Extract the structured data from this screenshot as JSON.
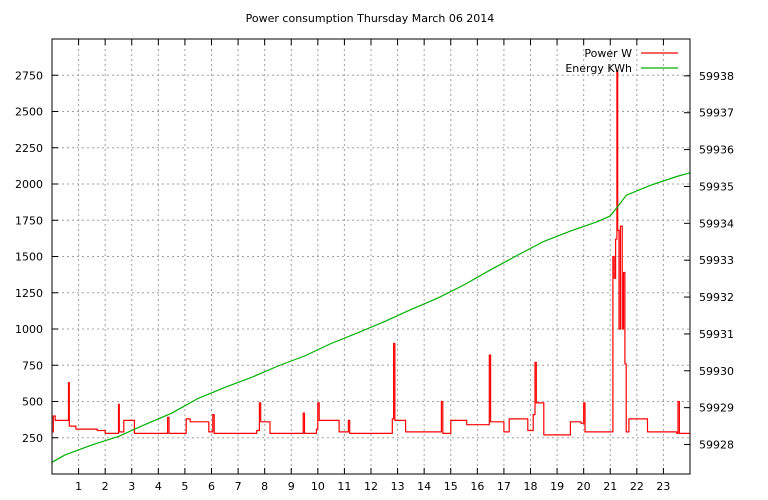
{
  "chart_data": {
    "type": "line",
    "title": "Power consumption Thursday March 06 2014",
    "xlabel": "",
    "ylabel": "",
    "y2label": "",
    "xlim": [
      0,
      24
    ],
    "xticks": [
      1,
      2,
      3,
      4,
      5,
      6,
      7,
      8,
      9,
      10,
      11,
      12,
      13,
      14,
      15,
      16,
      17,
      18,
      19,
      20,
      21,
      22,
      23
    ],
    "ylim": [
      0,
      3000
    ],
    "yticks": [
      250,
      500,
      750,
      1000,
      1250,
      1500,
      1750,
      2000,
      2250,
      2500,
      2750
    ],
    "y2lim": [
      59927.2,
      59939
    ],
    "y2ticks": [
      59928,
      59929,
      59930,
      59931,
      59932,
      59933,
      59934,
      59935,
      59936,
      59937,
      59938
    ],
    "grid": true,
    "legend_position": "top-right",
    "series": [
      {
        "name": "Power W",
        "color": "#ff0000",
        "axis": "left",
        "step": true,
        "points": [
          [
            0.0,
            290
          ],
          [
            0.05,
            400
          ],
          [
            0.12,
            370
          ],
          [
            0.55,
            370
          ],
          [
            0.62,
            630
          ],
          [
            0.65,
            330
          ],
          [
            0.9,
            310
          ],
          [
            1.7,
            300
          ],
          [
            2.0,
            280
          ],
          [
            2.5,
            480
          ],
          [
            2.53,
            290
          ],
          [
            2.7,
            370
          ],
          [
            3.0,
            370
          ],
          [
            3.1,
            280
          ],
          [
            4.3,
            280
          ],
          [
            4.35,
            390
          ],
          [
            4.4,
            280
          ],
          [
            5.0,
            280
          ],
          [
            5.05,
            380
          ],
          [
            5.2,
            360
          ],
          [
            5.9,
            290
          ],
          [
            6.0,
            290
          ],
          [
            6.05,
            410
          ],
          [
            6.1,
            280
          ],
          [
            7.0,
            280
          ],
          [
            7.7,
            300
          ],
          [
            7.8,
            490
          ],
          [
            7.85,
            360
          ],
          [
            8.2,
            280
          ],
          [
            9.4,
            280
          ],
          [
            9.45,
            420
          ],
          [
            9.5,
            280
          ],
          [
            9.95,
            310
          ],
          [
            10.0,
            490
          ],
          [
            10.05,
            370
          ],
          [
            10.8,
            290
          ],
          [
            11.1,
            290
          ],
          [
            11.15,
            370
          ],
          [
            11.2,
            280
          ],
          [
            12.0,
            280
          ],
          [
            12.8,
            380
          ],
          [
            12.85,
            900
          ],
          [
            12.9,
            370
          ],
          [
            13.3,
            290
          ],
          [
            14.6,
            290
          ],
          [
            14.65,
            500
          ],
          [
            14.7,
            280
          ],
          [
            15.0,
            370
          ],
          [
            15.6,
            340
          ],
          [
            15.9,
            340
          ],
          [
            16.4,
            340
          ],
          [
            16.45,
            820
          ],
          [
            16.5,
            360
          ],
          [
            17.0,
            290
          ],
          [
            17.2,
            380
          ],
          [
            17.9,
            300
          ],
          [
            18.0,
            300
          ],
          [
            18.1,
            410
          ],
          [
            18.17,
            770
          ],
          [
            18.22,
            490
          ],
          [
            18.5,
            270
          ],
          [
            19.0,
            270
          ],
          [
            19.5,
            360
          ],
          [
            19.9,
            350
          ],
          [
            20.0,
            490
          ],
          [
            20.05,
            290
          ],
          [
            21.05,
            290
          ],
          [
            21.1,
            1500
          ],
          [
            21.15,
            1350
          ],
          [
            21.2,
            1620
          ],
          [
            21.25,
            2780
          ],
          [
            21.28,
            1680
          ],
          [
            21.33,
            1000
          ],
          [
            21.38,
            1710
          ],
          [
            21.45,
            1000
          ],
          [
            21.5,
            1390
          ],
          [
            21.55,
            760
          ],
          [
            21.6,
            290
          ],
          [
            21.7,
            380
          ],
          [
            22.4,
            290
          ],
          [
            23.5,
            280
          ],
          [
            23.55,
            500
          ],
          [
            23.6,
            280
          ],
          [
            24.0,
            280
          ]
        ]
      },
      {
        "name": "Energy KWh",
        "color": "#00b000",
        "axis": "right",
        "step": false,
        "points": [
          [
            0.0,
            59927.52
          ],
          [
            0.5,
            59927.72
          ],
          [
            1.5,
            59927.99
          ],
          [
            2.5,
            59928.22
          ],
          [
            3.5,
            59928.54
          ],
          [
            4.5,
            59928.85
          ],
          [
            5.5,
            59929.25
          ],
          [
            6.5,
            59929.55
          ],
          [
            7.5,
            59929.82
          ],
          [
            8.5,
            59930.13
          ],
          [
            9.5,
            59930.4
          ],
          [
            10.5,
            59930.74
          ],
          [
            11.5,
            59931.03
          ],
          [
            12.5,
            59931.33
          ],
          [
            13.5,
            59931.66
          ],
          [
            14.5,
            59931.97
          ],
          [
            15.5,
            59932.33
          ],
          [
            16.5,
            59932.74
          ],
          [
            17.5,
            59933.13
          ],
          [
            18.5,
            59933.51
          ],
          [
            19.5,
            59933.79
          ],
          [
            20.5,
            59934.04
          ],
          [
            21.0,
            59934.2
          ],
          [
            21.3,
            59934.47
          ],
          [
            21.6,
            59934.76
          ],
          [
            22.5,
            59935.03
          ],
          [
            23.5,
            59935.27
          ],
          [
            24.0,
            59935.37
          ]
        ]
      }
    ]
  }
}
